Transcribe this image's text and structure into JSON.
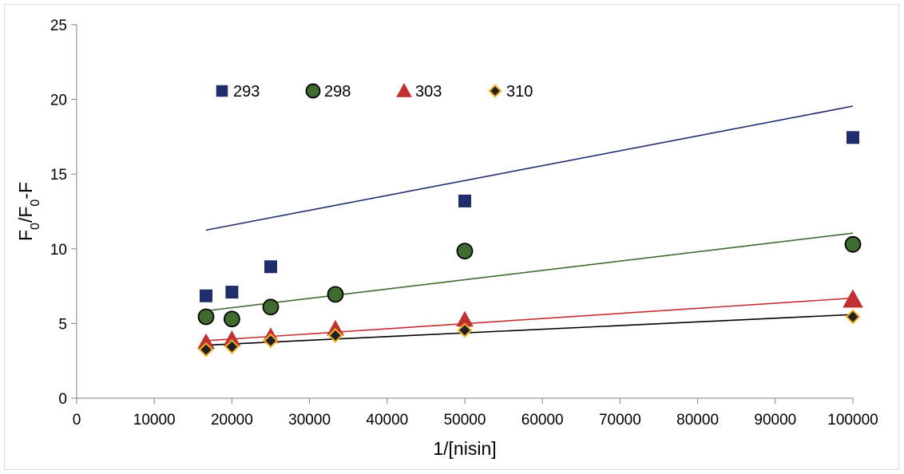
{
  "chart_data": {
    "type": "scatter",
    "title": "",
    "xlabel": "1/[nisin]",
    "ylabel": {
      "parts": [
        "F",
        "0",
        "/F",
        "0",
        "-F"
      ]
    },
    "xlim": [
      0,
      100000
    ],
    "ylim": [
      0,
      25
    ],
    "xticks": [
      "0",
      "10000",
      "20000",
      "30000",
      "40000",
      "50000",
      "60000",
      "70000",
      "80000",
      "90000",
      "100000"
    ],
    "yticks": [
      "0",
      "5",
      "10",
      "15",
      "20",
      "25"
    ],
    "legend_position": "top-left",
    "series": [
      {
        "name": "293",
        "marker": "square",
        "color": "#1f2d6b",
        "edge": "#1f2d6b",
        "line_color": "#1f2d6b",
        "x": [
          16667,
          20000,
          25000,
          50000,
          100000
        ],
        "y": [
          6.85,
          7.1,
          8.8,
          13.2,
          17.45
        ],
        "trendline": [
          [
            16667,
            11.25
          ],
          [
            100000,
            19.55
          ]
        ]
      },
      {
        "name": "298",
        "marker": "circle",
        "color": "#3f6b2e",
        "edge": "#000000",
        "line_color": "#3f6b2e",
        "x": [
          16667,
          20000,
          25000,
          33333,
          50000,
          100000
        ],
        "y": [
          5.45,
          5.3,
          6.1,
          6.95,
          9.85,
          10.3
        ],
        "trendline": [
          [
            16667,
            5.85
          ],
          [
            100000,
            11.05
          ]
        ]
      },
      {
        "name": "303",
        "marker": "triangle",
        "color": "#c0312f",
        "edge": "#c0312f",
        "line_color": "#c0312f",
        "x": [
          16667,
          20000,
          25000,
          33333,
          50000,
          100000
        ],
        "y": [
          3.75,
          3.95,
          4.15,
          4.65,
          5.25,
          6.6
        ],
        "trendline": [
          [
            16667,
            3.85
          ],
          [
            100000,
            6.7
          ]
        ]
      },
      {
        "name": "310",
        "marker": "diamond",
        "color": "#222222",
        "edge": "#f0b323",
        "line_color": "#000000",
        "x": [
          16667,
          20000,
          25000,
          33333,
          50000,
          100000
        ],
        "y": [
          3.25,
          3.45,
          3.85,
          4.2,
          4.55,
          5.45
        ],
        "trendline": [
          [
            16667,
            3.55
          ],
          [
            100000,
            5.6
          ]
        ]
      }
    ]
  }
}
